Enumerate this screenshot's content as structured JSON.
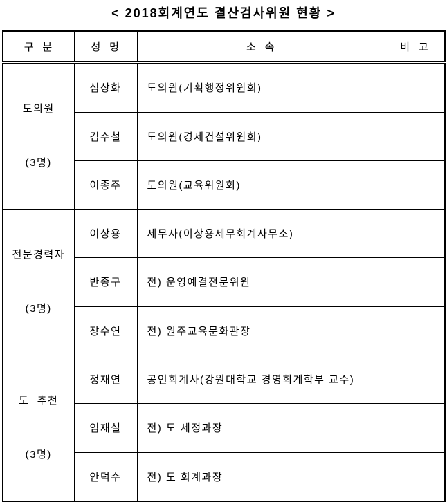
{
  "title": "< 2018회계연도 결산검사위원 현황 >",
  "table": {
    "headers": [
      "구  분",
      "성  명",
      "소  속",
      "비  고"
    ],
    "groups": [
      {
        "category": "도의원",
        "count": "(3명)",
        "members": [
          {
            "name": "심상화",
            "affiliation": "도의원(기획행정위원회)",
            "remark": ""
          },
          {
            "name": "김수철",
            "affiliation": "도의원(경제건설위원회)",
            "remark": ""
          },
          {
            "name": "이종주",
            "affiliation": "도의원(교육위원회)",
            "remark": ""
          }
        ]
      },
      {
        "category": "전문경력자",
        "count": "(3명)",
        "members": [
          {
            "name": "이상용",
            "affiliation": "세무사(이상용세무회계사무소)",
            "remark": ""
          },
          {
            "name": "반종구",
            "affiliation": "전) 운영예결전문위원",
            "remark": ""
          },
          {
            "name": "장수연",
            "affiliation": "전) 원주교육문화관장",
            "remark": ""
          }
        ]
      },
      {
        "category": "도  추천",
        "count": "(3명)",
        "members": [
          {
            "name": "정재연",
            "affiliation": "공인회계사(강원대학교 경영회계학부 교수)",
            "remark": ""
          },
          {
            "name": "임재설",
            "affiliation": "전) 도 세정과장",
            "remark": ""
          },
          {
            "name": "안덕수",
            "affiliation": "전) 도 회계과장",
            "remark": ""
          }
        ]
      }
    ]
  }
}
